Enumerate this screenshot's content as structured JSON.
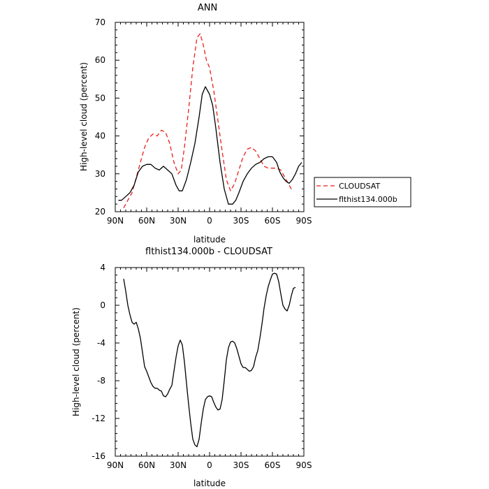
{
  "chart_data": [
    {
      "type": "line",
      "title": "ANN",
      "xlabel": "latitude",
      "ylabel": "High-level cloud (percent)",
      "xlim": [
        -90,
        90
      ],
      "ylim": [
        20,
        70
      ],
      "x_ticks": [
        -90,
        -60,
        -30,
        0,
        30,
        60,
        90
      ],
      "x_tick_labels": [
        "90N",
        "60N",
        "30N",
        "0",
        "30S",
        "60S",
        "90S"
      ],
      "y_ticks": [
        20,
        30,
        40,
        50,
        60,
        70
      ],
      "y_tick_labels": [
        "20",
        "30",
        "40",
        "50",
        "60",
        "70"
      ],
      "grid": false,
      "legend_position": "right",
      "series": [
        {
          "name": "CLOUDSAT",
          "color": "#e8201c",
          "dash": "dashed",
          "x": [
            -82,
            -78,
            -74,
            -70,
            -66,
            -62,
            -58,
            -54,
            -50,
            -46,
            -42,
            -38,
            -34,
            -30,
            -27,
            -24,
            -20,
            -16,
            -12,
            -9,
            -6,
            -3,
            0,
            4,
            8,
            12,
            16,
            20,
            24,
            28,
            32,
            36,
            40,
            44,
            48,
            52,
            56,
            60,
            64,
            68,
            72,
            76,
            79
          ],
          "y": [
            21,
            23,
            25,
            29,
            33,
            37,
            39.5,
            40.5,
            40,
            41.5,
            41,
            38,
            33,
            30,
            31,
            37,
            47,
            58,
            66,
            67,
            64,
            60,
            58,
            52,
            44,
            36,
            28.5,
            25.5,
            27.5,
            31,
            34.5,
            36.5,
            37,
            36,
            34,
            32,
            31.5,
            31.5,
            31.5,
            31,
            29,
            27,
            25.5
          ]
        },
        {
          "name": "flthist134.000b",
          "color": "#000000",
          "dash": "solid",
          "x": [
            -87,
            -84,
            -80,
            -76,
            -72,
            -68,
            -64,
            -60,
            -56,
            -52,
            -48,
            -44,
            -40,
            -36,
            -32,
            -29,
            -26,
            -22,
            -18,
            -14,
            -10,
            -7,
            -4,
            0,
            3,
            6,
            10,
            14,
            18,
            22,
            25,
            28,
            32,
            36,
            40,
            44,
            48,
            52,
            56,
            60,
            64,
            67,
            70,
            73,
            76,
            79,
            82,
            85,
            88
          ],
          "y": [
            23,
            23,
            24,
            25,
            27,
            30.5,
            32,
            32.5,
            32.5,
            31.5,
            31,
            32,
            31,
            30,
            27,
            25.5,
            25.5,
            28.5,
            33,
            38,
            45,
            51,
            53,
            51,
            48,
            42,
            33,
            26,
            22,
            22,
            23,
            25,
            28,
            30,
            31.5,
            32.5,
            33,
            34,
            34.5,
            34.5,
            33,
            30.5,
            29,
            28,
            27.5,
            28.5,
            30,
            32,
            33
          ]
        }
      ]
    },
    {
      "type": "line",
      "title": "flthist134.000b - CLOUDSAT",
      "xlabel": "latitude",
      "ylabel": "High-level cloud (percent)",
      "xlim": [
        -90,
        90
      ],
      "ylim": [
        -16,
        4
      ],
      "x_ticks": [
        -90,
        -60,
        -30,
        0,
        30,
        60,
        90
      ],
      "x_tick_labels": [
        "90N",
        "60N",
        "30N",
        "0",
        "30S",
        "60S",
        "90S"
      ],
      "y_ticks": [
        -16,
        -12,
        -8,
        -4,
        0,
        4
      ],
      "y_tick_labels": [
        "-16",
        "-12",
        "-8",
        "-4",
        "0",
        "4"
      ],
      "grid": false,
      "series": [
        {
          "color": "#000000",
          "dash": "solid",
          "x": [
            -82,
            -80,
            -78,
            -76,
            -74,
            -72,
            -70,
            -68,
            -66,
            -64,
            -62,
            -60,
            -58,
            -56,
            -54,
            -52,
            -50,
            -48,
            -46,
            -44,
            -42,
            -40,
            -38,
            -36,
            -34,
            -32,
            -30,
            -28,
            -26,
            -24,
            -22,
            -20,
            -18,
            -16,
            -14,
            -12,
            -10,
            -8,
            -6,
            -4,
            -2,
            0,
            2,
            4,
            6,
            8,
            10,
            12,
            14,
            16,
            18,
            20,
            22,
            24,
            26,
            28,
            30,
            32,
            34,
            36,
            38,
            40,
            42,
            44,
            46,
            48,
            50,
            52,
            54,
            56,
            58,
            60,
            62,
            64,
            66,
            68,
            70,
            72,
            74,
            76,
            78,
            80,
            82
          ],
          "y": [
            2.8,
            1.5,
            0,
            -1,
            -1.8,
            -2,
            -1.8,
            -2.5,
            -3.5,
            -5,
            -6.5,
            -7,
            -7.6,
            -8.2,
            -8.6,
            -8.8,
            -8.8,
            -9,
            -9.1,
            -9.6,
            -9.7,
            -9.4,
            -8.9,
            -8.5,
            -7,
            -5.5,
            -4.3,
            -3.7,
            -4.2,
            -6,
            -8.3,
            -10.5,
            -12.5,
            -14.2,
            -14.8,
            -15,
            -14.2,
            -12.5,
            -11,
            -10,
            -9.7,
            -9.6,
            -9.7,
            -10.3,
            -10.8,
            -11.1,
            -11,
            -10,
            -8,
            -5.8,
            -4.5,
            -3.9,
            -3.8,
            -4,
            -4.6,
            -5.4,
            -6.2,
            -6.6,
            -6.6,
            -6.8,
            -7,
            -6.9,
            -6.5,
            -5.5,
            -4.8,
            -3.5,
            -2,
            -0.3,
            1,
            2,
            2.7,
            3.3,
            3.4,
            3.3,
            2.5,
            1.2,
            0,
            -0.4,
            -0.6,
            0,
            1,
            1.8,
            1.9
          ]
        }
      ]
    }
  ],
  "legend": {
    "items": [
      {
        "label": "CLOUDSAT",
        "color": "#e8201c",
        "dash": "dashed"
      },
      {
        "label": "flthist134.000b",
        "color": "#000000",
        "dash": "solid"
      }
    ]
  }
}
